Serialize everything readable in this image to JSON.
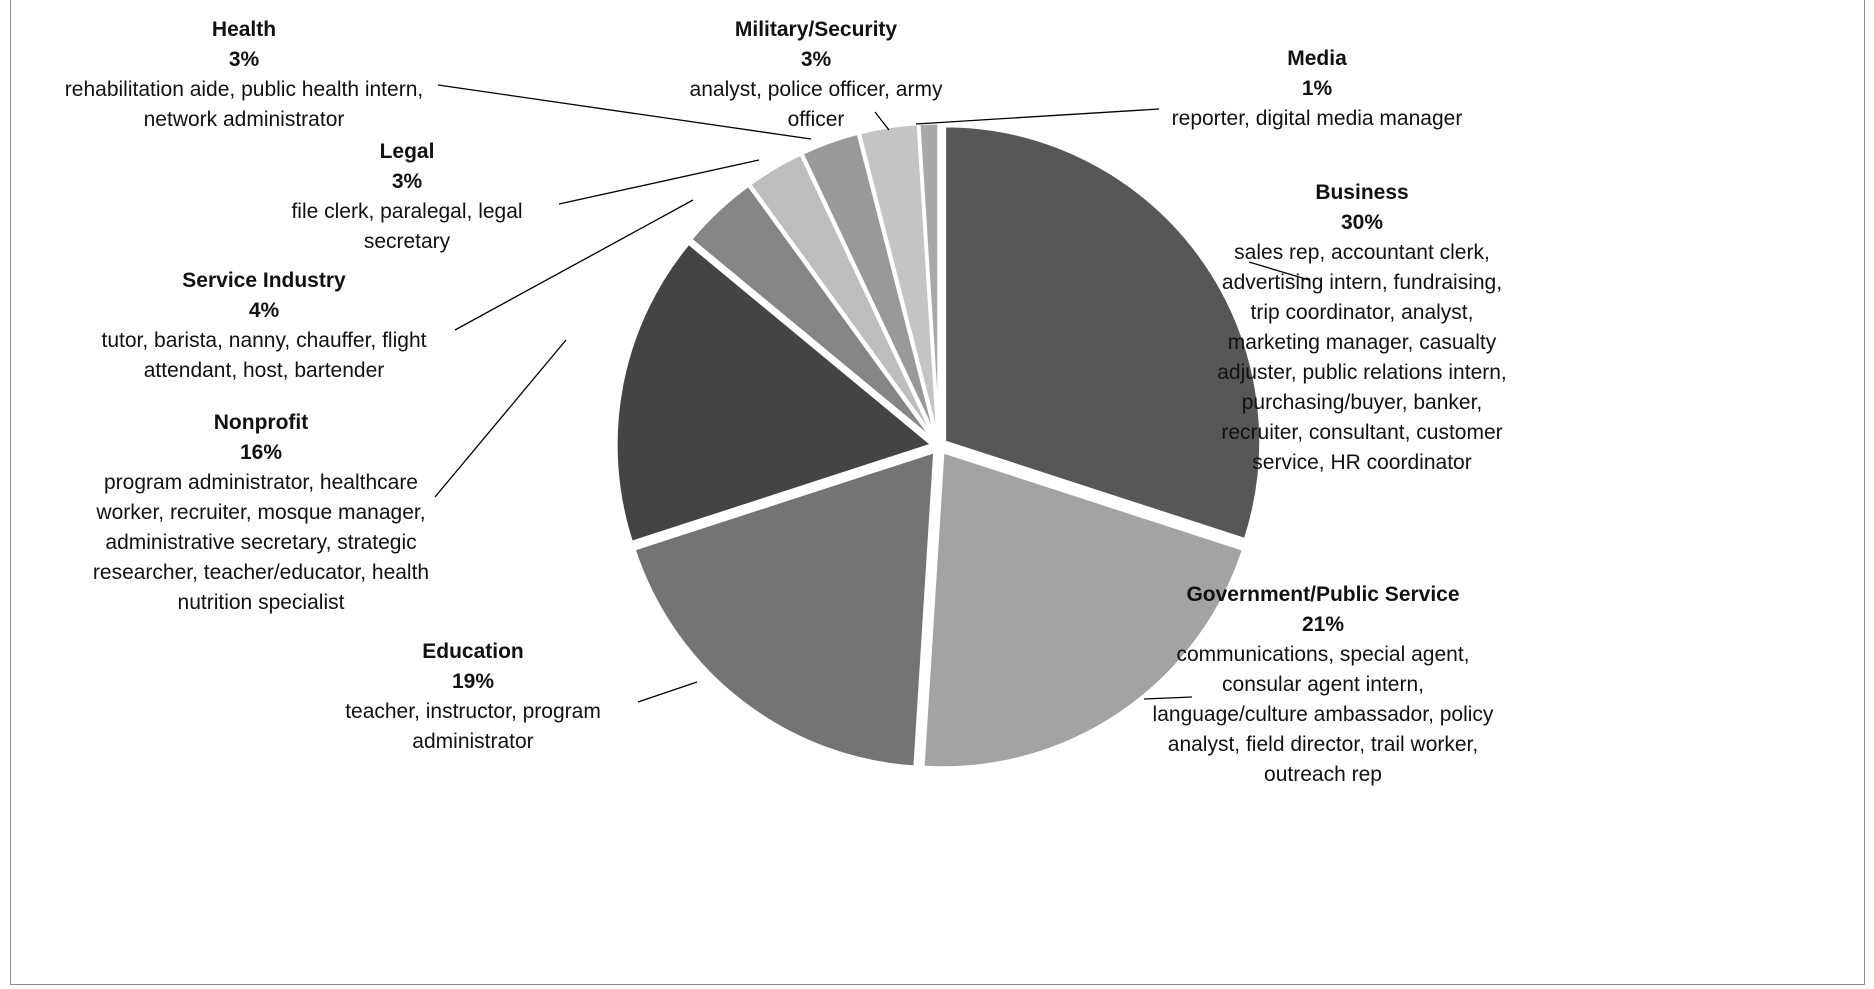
{
  "chart_data": {
    "type": "pie",
    "colors": {
      "Business": "#575757",
      "Government/Public Service": "#a3a3a3",
      "Education": "#747474",
      "Nonprofit": "#444444",
      "Service Industry": "#858585",
      "Legal": "#bdbdbd",
      "Health": "#999999",
      "Military/Security": "#c4c4c4",
      "Media": "#a8a8a8"
    },
    "slices": [
      {
        "name": "Business",
        "value": 30,
        "pct_label": "30%",
        "desc": "sales rep, accountant clerk, advertising intern, fundraising, trip coordinator, analyst, marketing manager, casualty adjuster, public relations intern, purchasing/buyer, banker, recruiter, consultant, customer service, HR coordinator"
      },
      {
        "name": "Government/Public Service",
        "value": 21,
        "pct_label": "21%",
        "desc": "communications, special agent, consular agent intern, language/culture ambassador, policy analyst, field director, trail worker, outreach rep"
      },
      {
        "name": "Education",
        "value": 19,
        "pct_label": "19%",
        "desc": "teacher, instructor, program administrator"
      },
      {
        "name": "Nonprofit",
        "value": 16,
        "pct_label": "16%",
        "desc": "program administrator, healthcare worker, recruiter, mosque manager, administrative secretary, strategic researcher, teacher/educator, health nutrition specialist"
      },
      {
        "name": "Service Industry",
        "value": 4,
        "pct_label": "4%",
        "desc": "tutor, barista, nanny, chauffer, flight attendant, host, bartender"
      },
      {
        "name": "Legal",
        "value": 3,
        "pct_label": "3%",
        "desc": "file clerk, paralegal, legal secretary"
      },
      {
        "name": "Health",
        "value": 3,
        "pct_label": "3%",
        "desc": "rehabilitation aide, public health intern, network administrator"
      },
      {
        "name": "Military/Security",
        "value": 3,
        "pct_label": "3%",
        "desc": "analyst, police officer, army officer"
      },
      {
        "name": "Media",
        "value": 1,
        "pct_label": "1%",
        "desc": "reporter, digital media manager"
      }
    ]
  }
}
